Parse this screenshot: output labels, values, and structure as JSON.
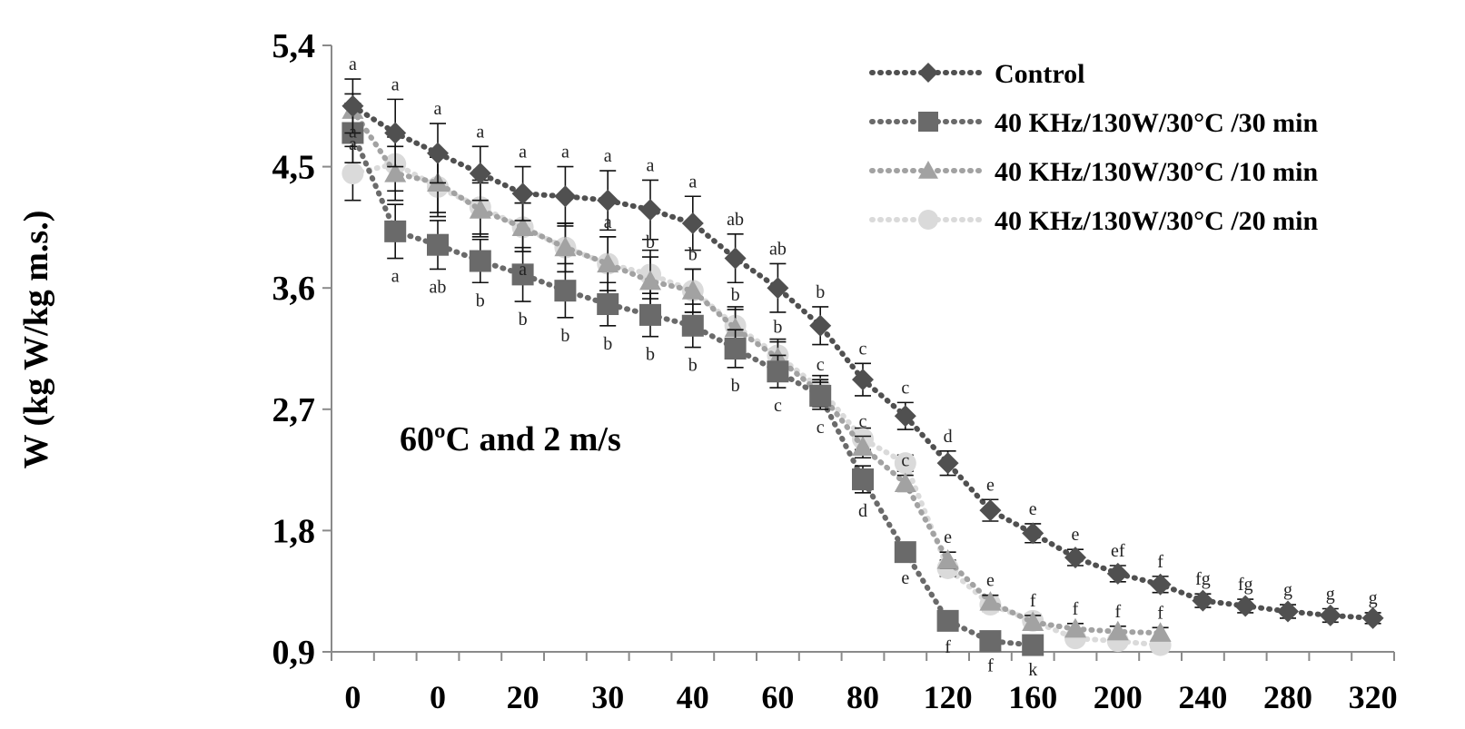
{
  "chart_data": {
    "type": "line",
    "title": "",
    "annotation": "60ºC and 2 m/s",
    "xlabel": "",
    "ylabel": "W (kg W/kg m.s.)",
    "y_ticks": [
      "5,4",
      "4,5",
      "3,6",
      "2,7",
      "1,8",
      "0,9"
    ],
    "ylim": [
      0.9,
      5.4
    ],
    "x_ticks": [
      "0",
      "0",
      "20",
      "30",
      "40",
      "60",
      "80",
      "120",
      "160",
      "200",
      "240",
      "280",
      "320"
    ],
    "x_positions": 25,
    "grid": false,
    "legend_position": "top-right",
    "series": [
      {
        "name": "Control",
        "color": "#505050",
        "marker": "diamond",
        "values": [
          4.95,
          4.75,
          4.6,
          4.45,
          4.3,
          4.28,
          4.25,
          4.18,
          4.08,
          3.82,
          3.6,
          3.32,
          2.92,
          2.65,
          2.3,
          1.95,
          1.78,
          1.6,
          1.48,
          1.4,
          1.28,
          1.24,
          1.2,
          1.17,
          1.15
        ],
        "errors": [
          0.2,
          0.25,
          0.22,
          0.2,
          0.2,
          0.22,
          0.22,
          0.22,
          0.2,
          0.18,
          0.18,
          0.14,
          0.12,
          0.1,
          0.09,
          0.08,
          0.07,
          0.06,
          0.06,
          0.06,
          0.05,
          0.05,
          0.05,
          0.05,
          0.04
        ],
        "letters": [
          "a",
          "a",
          "a",
          "a",
          "a",
          "a",
          "a",
          "a",
          "a",
          "ab",
          "ab",
          "b",
          "c",
          "c",
          "d",
          "e",
          "e",
          "e",
          "ef",
          "f",
          "fg",
          "fg",
          "g",
          "g",
          "g"
        ]
      },
      {
        "name": "40 KHz/130W/30°C /30 min",
        "color": "#6a6a6a",
        "marker": "square",
        "values": [
          4.75,
          4.02,
          3.92,
          3.8,
          3.7,
          3.58,
          3.48,
          3.4,
          3.32,
          3.15,
          2.98,
          2.8,
          2.18,
          1.64,
          1.13,
          0.98,
          0.95
        ],
        "errors": [
          0.22,
          0.2,
          0.18,
          0.16,
          0.2,
          0.2,
          0.16,
          0.16,
          0.16,
          0.14,
          0.12,
          0.1,
          0.1,
          0.06,
          0.06,
          0.05,
          0.05
        ],
        "letters": [
          "",
          "a",
          "ab",
          "b",
          "b",
          "b",
          "b",
          "b",
          "b",
          "b",
          "c",
          "c",
          "d",
          "e",
          "f",
          "f",
          "k"
        ]
      },
      {
        "name": "40 KHz/130W/30°C /10 min",
        "color": "#a2a2a2",
        "marker": "triangle",
        "values": [
          4.92,
          4.45,
          4.38,
          4.18,
          4.05,
          3.9,
          3.78,
          3.65,
          3.58,
          3.3,
          3.08,
          2.82,
          2.42,
          2.15,
          1.58,
          1.27,
          1.12,
          1.07,
          1.05,
          1.04
        ],
        "errors": [
          0.12,
          0.2,
          0.22,
          0.2,
          0.18,
          0.18,
          0.2,
          0.18,
          0.16,
          0.14,
          0.12,
          0.1,
          0.08,
          0.06,
          0.06,
          0.05,
          0.05,
          0.04,
          0.04,
          0.04
        ],
        "letters": [
          "a",
          "",
          "",
          "",
          "a",
          "",
          "a",
          "b",
          "b",
          "b",
          "b",
          "c",
          "c",
          "c",
          "e",
          "e",
          "f",
          "f",
          "f",
          "f"
        ]
      },
      {
        "name": "40 KHz/130W/30°C /20 min",
        "color": "#dadada",
        "marker": "circle",
        "values": [
          4.45,
          4.52,
          4.35,
          4.2,
          4.05,
          3.9,
          3.78,
          3.7,
          3.58,
          3.32,
          3.1,
          2.85,
          2.48,
          2.3,
          1.52,
          1.25,
          1.13,
          1.0,
          0.98,
          0.95
        ],
        "errors": [
          0.2,
          0.2,
          0.22,
          0.2,
          0.18,
          0.18,
          0.2,
          0.18,
          0.16,
          0.14,
          0.12,
          0.1,
          0.08,
          0.06,
          0.06,
          0.05,
          0.05,
          0.04,
          0.04,
          0.04
        ],
        "letters": [
          "a",
          "",
          "",
          "",
          "",
          "",
          "",
          "",
          "",
          "",
          "",
          "",
          "",
          "",
          "",
          "",
          "",
          "",
          "",
          ""
        ]
      }
    ]
  }
}
